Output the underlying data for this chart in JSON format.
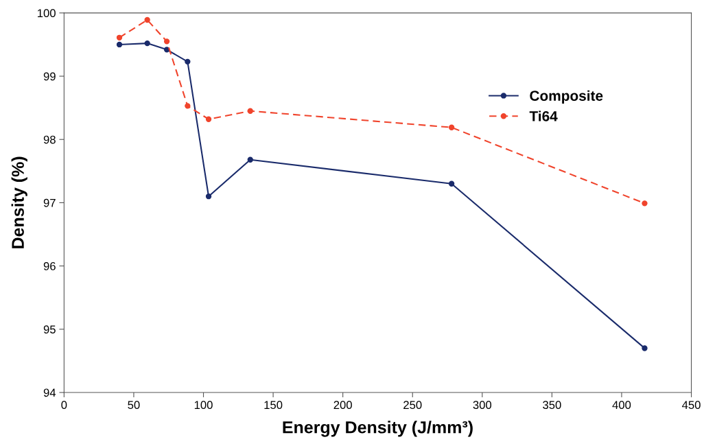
{
  "chart_data": {
    "type": "line",
    "xlabel": "Energy Density (J/mm³)",
    "ylabel": "Density (%)",
    "xlim": [
      0,
      450
    ],
    "xticks": [
      0,
      50,
      100,
      150,
      200,
      250,
      300,
      350,
      400,
      450
    ],
    "ylim": [
      94,
      100
    ],
    "yticks": [
      94,
      95,
      96,
      97,
      98,
      99,
      100
    ],
    "grid": false,
    "legend": "top right",
    "marker": "circle",
    "x": [
      39.7,
      59.7,
      73.7,
      88.6,
      103.7,
      133.6,
      278.0,
      416.5
    ],
    "series": [
      {
        "name": "Composite",
        "color": "#1a2b6b",
        "line_style": "solid",
        "values": [
          99.5,
          99.52,
          99.42,
          99.23,
          97.1,
          97.68,
          97.3,
          94.7
        ]
      },
      {
        "name": "Ti64",
        "color": "#f0442c",
        "line_style": "dashed",
        "values": [
          99.61,
          99.89,
          99.55,
          98.53,
          98.32,
          98.45,
          98.19,
          96.99
        ]
      }
    ]
  }
}
